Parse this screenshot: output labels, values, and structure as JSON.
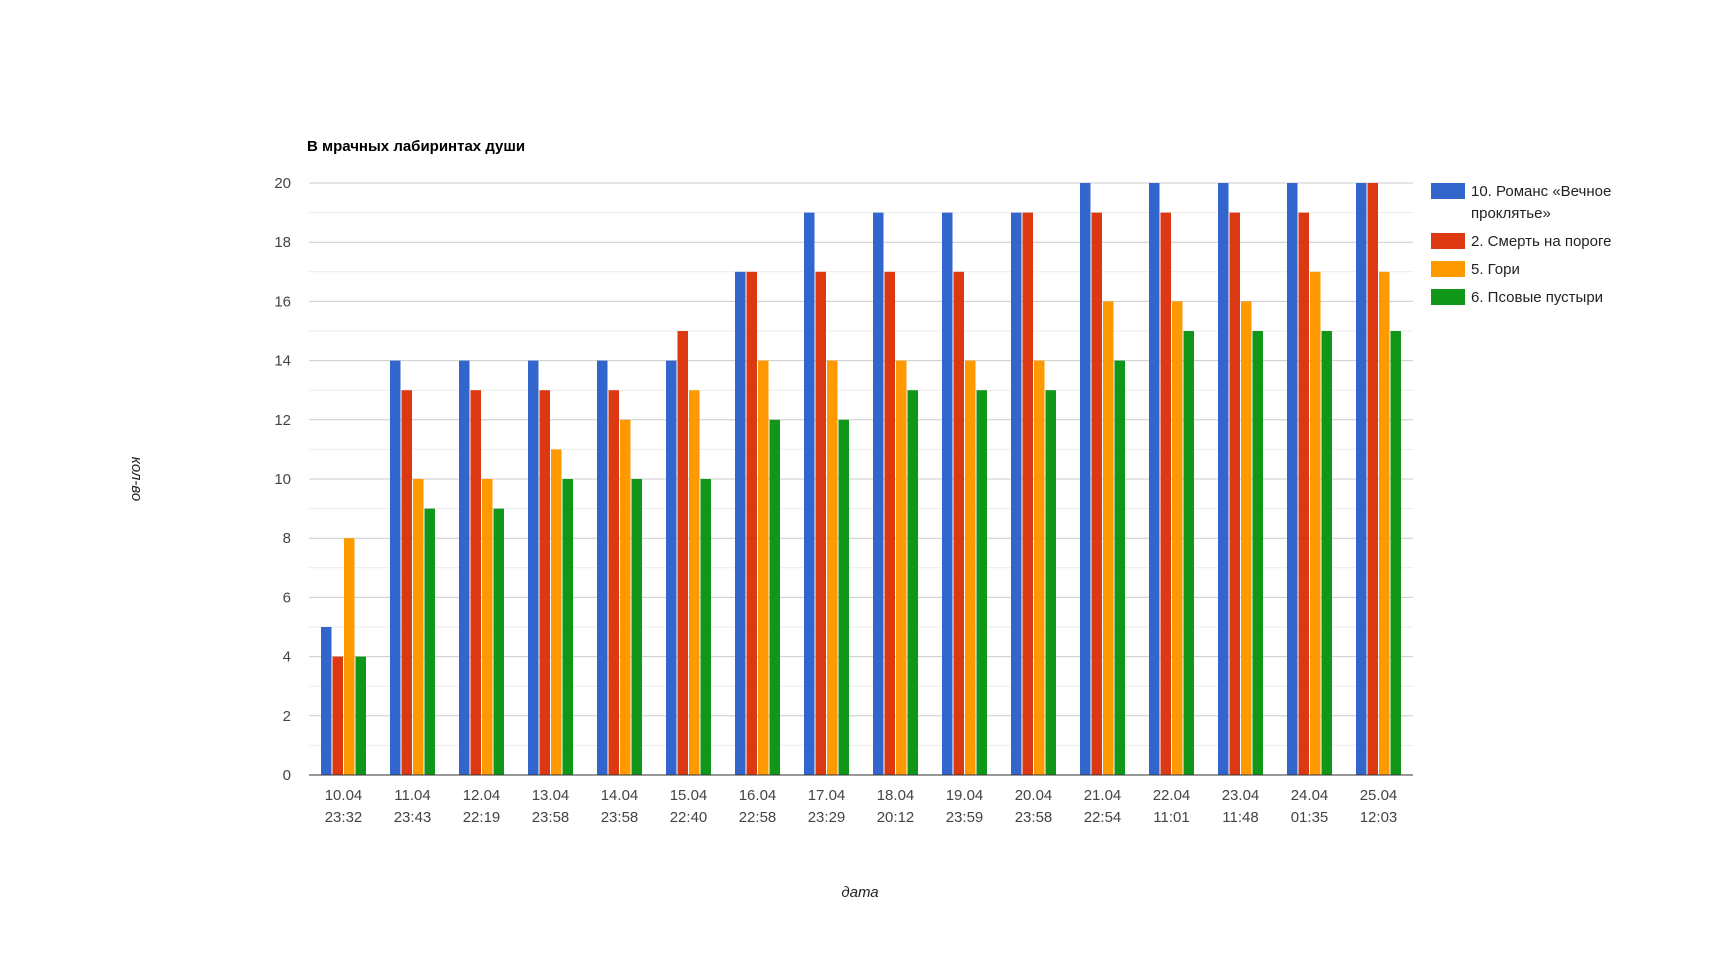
{
  "chart_data": {
    "type": "bar",
    "title": "В мрачных лабиринтах души",
    "xlabel": "дата",
    "ylabel": "кол-во",
    "ylim": [
      0,
      20
    ],
    "yticks": [
      0,
      2,
      4,
      6,
      8,
      10,
      12,
      14,
      16,
      18,
      20
    ],
    "grid": true,
    "legend_position": "right",
    "categories": [
      [
        "10.04",
        "23:32"
      ],
      [
        "11.04",
        "23:43"
      ],
      [
        "12.04",
        "22:19"
      ],
      [
        "13.04",
        "23:58"
      ],
      [
        "14.04",
        "23:58"
      ],
      [
        "15.04",
        "22:40"
      ],
      [
        "16.04",
        "22:58"
      ],
      [
        "17.04",
        "23:29"
      ],
      [
        "18.04",
        "20:12"
      ],
      [
        "19.04",
        "23:59"
      ],
      [
        "20.04",
        "23:58"
      ],
      [
        "21.04",
        "22:54"
      ],
      [
        "22.04",
        "11:01"
      ],
      [
        "23.04",
        "11:48"
      ],
      [
        "24.04",
        "01:35"
      ],
      [
        "25.04",
        "12:03"
      ]
    ],
    "series": [
      {
        "name": "10. Романс «Вечное проклятье»",
        "legend_lines": [
          "10. Романс «Вечное",
          "проклятье»"
        ],
        "color": "#3366cc",
        "values": [
          5,
          14,
          14,
          14,
          14,
          14,
          17,
          19,
          19,
          19,
          19,
          20,
          20,
          20,
          20,
          20
        ]
      },
      {
        "name": "2. Смерть на пороге",
        "legend_lines": [
          "2. Смерть на пороге"
        ],
        "color": "#dc3912",
        "values": [
          4,
          13,
          13,
          13,
          13,
          15,
          17,
          17,
          17,
          17,
          19,
          19,
          19,
          19,
          19,
          20
        ]
      },
      {
        "name": "5. Гори",
        "legend_lines": [
          "5. Гори"
        ],
        "color": "#ff9900",
        "values": [
          8,
          10,
          10,
          11,
          12,
          13,
          14,
          14,
          14,
          14,
          14,
          16,
          16,
          16,
          17,
          17
        ]
      },
      {
        "name": "6. Псовые пустыри",
        "legend_lines": [
          "6. Псовые пустыри"
        ],
        "color": "#109618",
        "values": [
          4,
          9,
          9,
          10,
          10,
          10,
          12,
          12,
          13,
          13,
          13,
          14,
          15,
          15,
          15,
          15
        ]
      }
    ]
  }
}
